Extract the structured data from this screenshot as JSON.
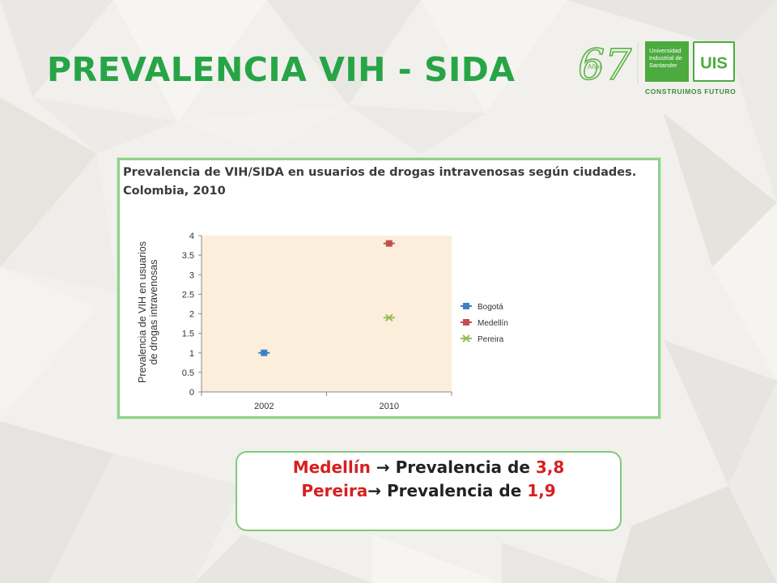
{
  "slide": {
    "title": "PREVALENCIA VIH - SIDA",
    "colors": {
      "title": "#27a546",
      "accent_red": "#d62020",
      "frame_green": "#8fd28a"
    }
  },
  "logo": {
    "anniversary_number": "67",
    "anniversary_word": "Años",
    "university_name": "Universidad Industrial de Santander",
    "monogram": "UIS",
    "tagline": "CONSTRUIMOS FUTURO"
  },
  "figure": {
    "title_line1": "Prevalencia de VIH/SIDA en usuarios de drogas intravenosas según ciudades.",
    "title_line2": "Colombia, 2010"
  },
  "chart_data": {
    "type": "scatter",
    "categories": [
      "2002",
      "2010"
    ],
    "ylabel_line1": "Prevalencia de VIH en usuarios",
    "ylabel_line2": "de drogas intravenosas",
    "ylim": [
      0,
      4
    ],
    "yticks": [
      "0",
      "0.5",
      "1",
      "1.5",
      "2",
      "2.5",
      "3",
      "3.5",
      "4"
    ],
    "plot_background": "#fbefdc",
    "grid": false,
    "legend_position": "right",
    "series": [
      {
        "name": "Bogotá",
        "color": "#3f7fc5",
        "marker": "diamond",
        "values": [
          1.0,
          null
        ]
      },
      {
        "name": "Medellín",
        "color": "#c0504d",
        "marker": "square",
        "values": [
          null,
          3.8
        ]
      },
      {
        "name": "Pereira",
        "color": "#9bbb59",
        "marker": "x",
        "values": [
          null,
          1.9
        ]
      }
    ]
  },
  "callout": {
    "line1": {
      "city": "Medellín",
      "arrow": "→",
      "text": "Prevalencia de",
      "value": "3,8"
    },
    "line2": {
      "city": "Pereira",
      "arrow": "→",
      "text": "Prevalencia de",
      "value": "1,9"
    }
  }
}
